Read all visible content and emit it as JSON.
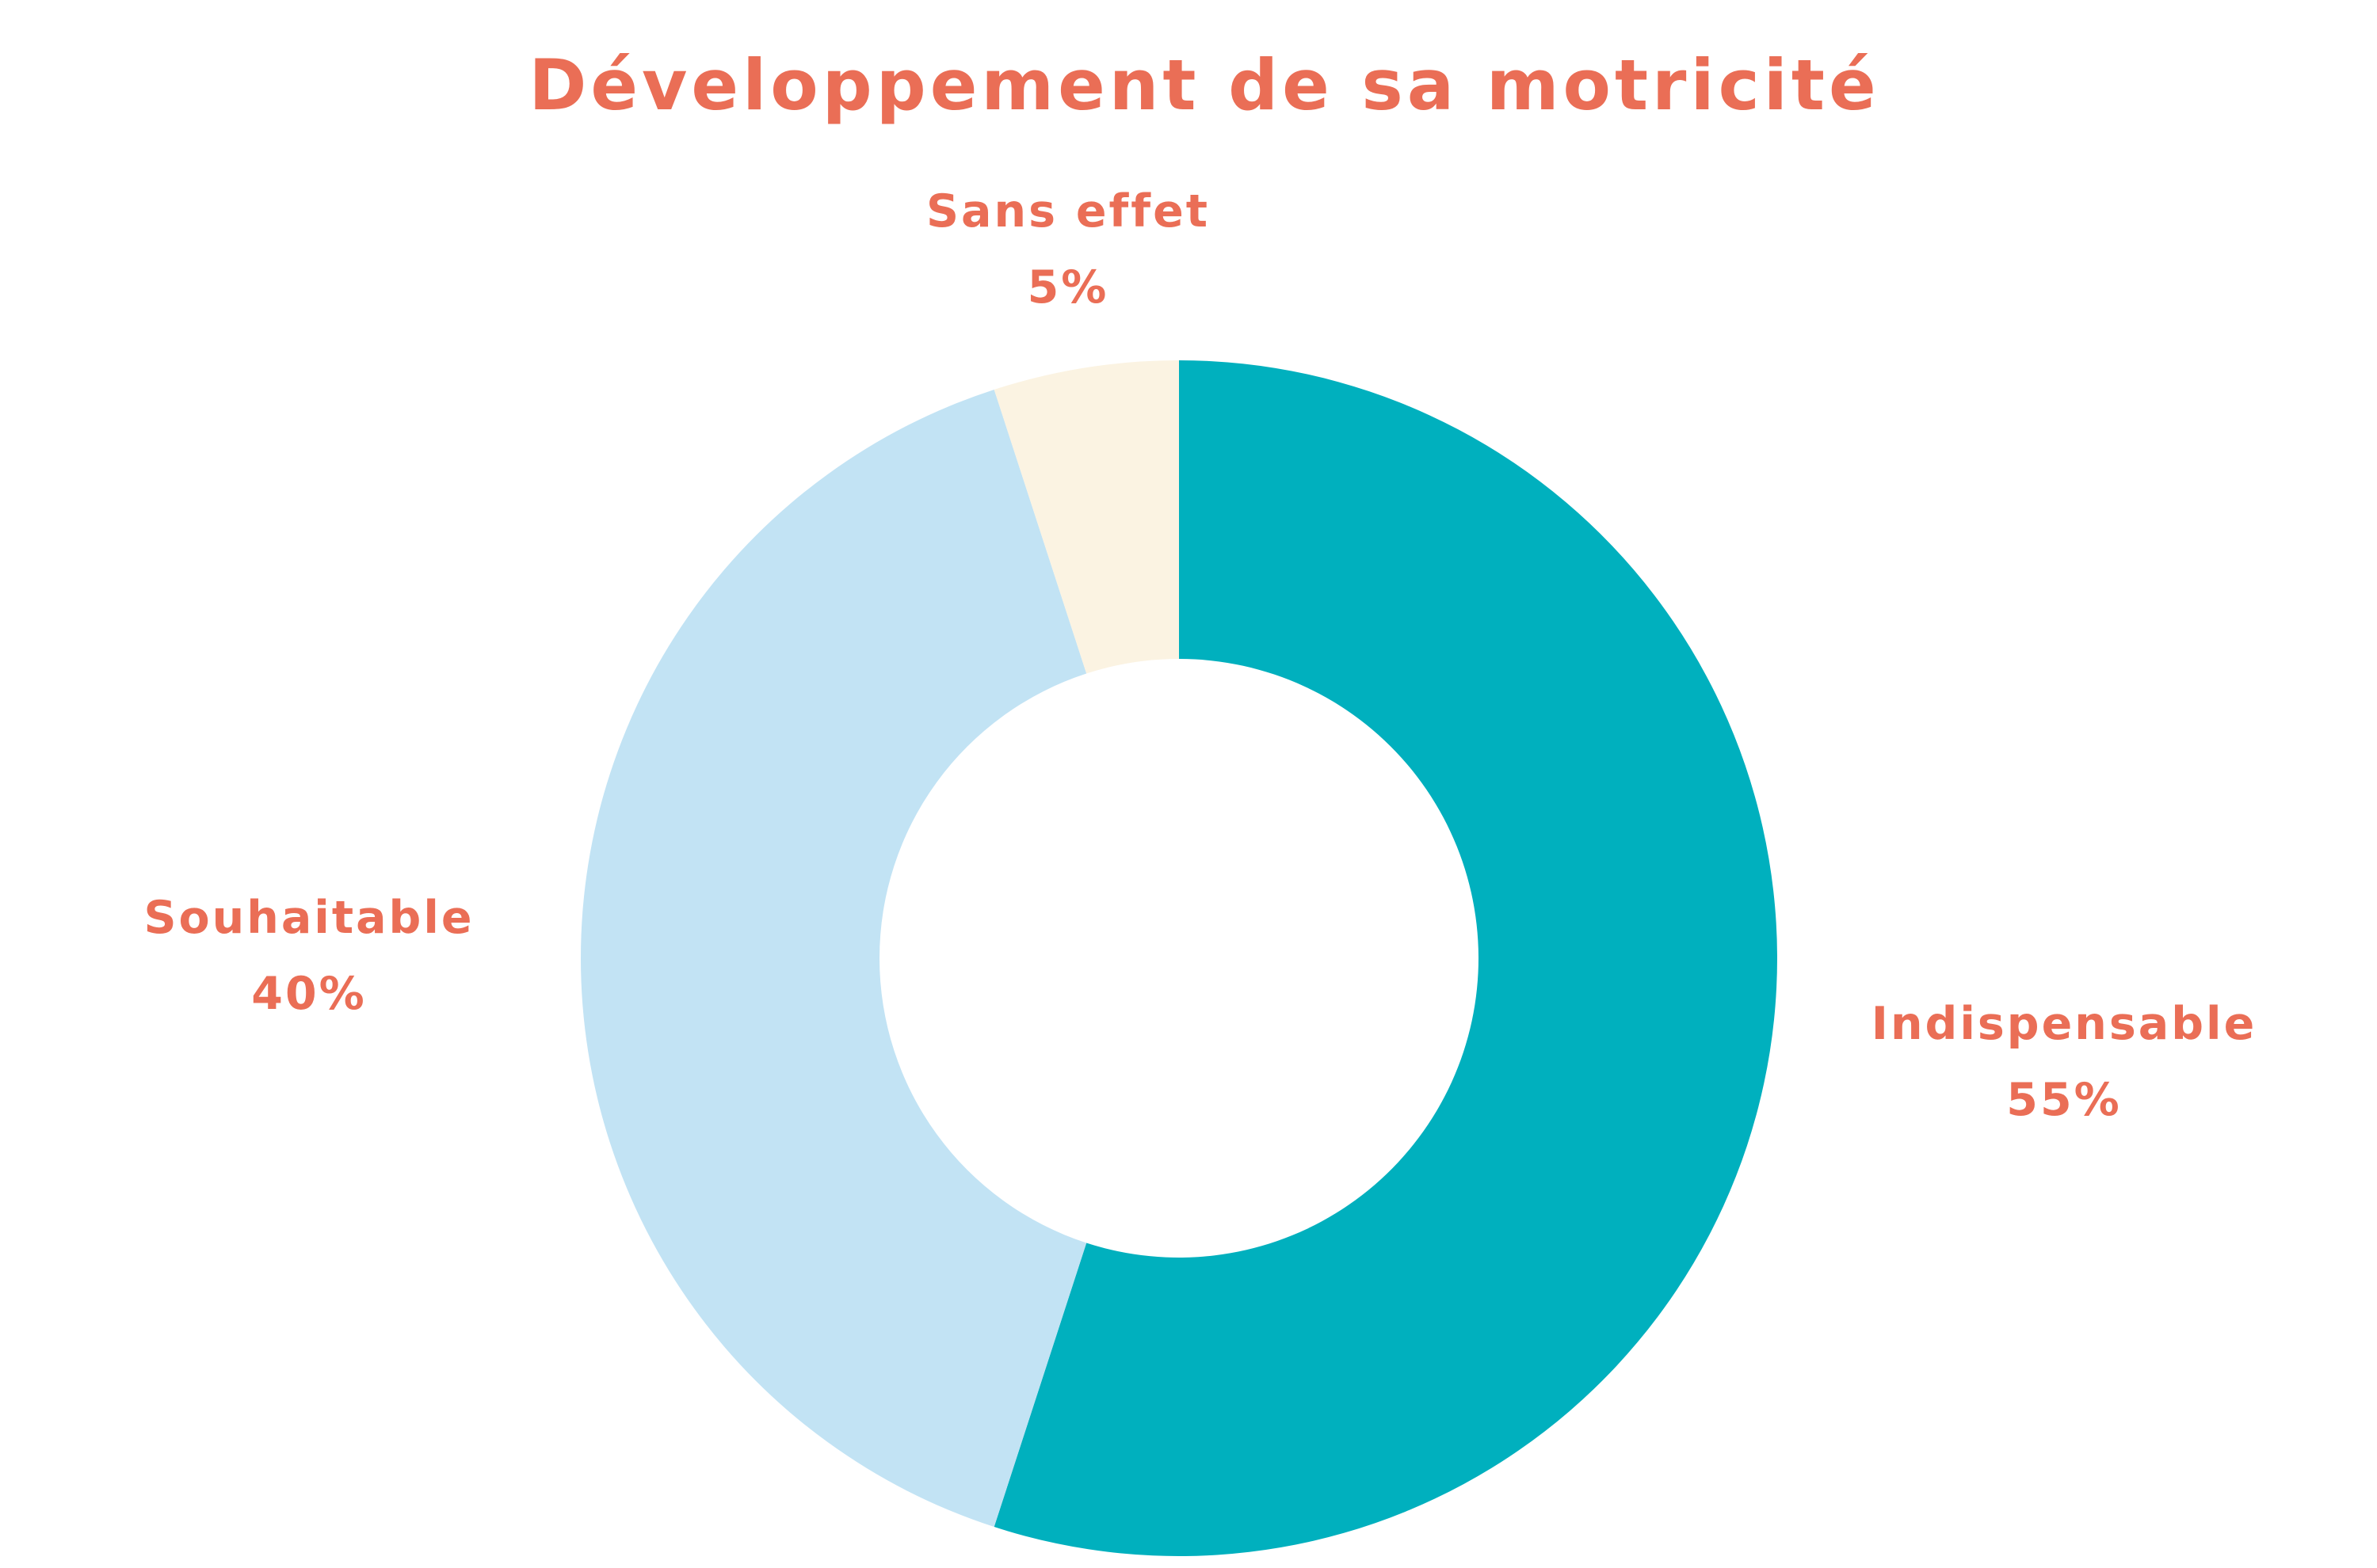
{
  "chart_data": {
    "type": "pie",
    "variant": "donut",
    "title": "Développement de sa motricité",
    "slices": [
      {
        "label": "Indispensable",
        "value": 55,
        "value_label": "55%",
        "color": "#00B0BE"
      },
      {
        "label": "Souhaitable",
        "value": 40,
        "value_label": "40%",
        "color": "#C2E3F4"
      },
      {
        "label": "Sans effet",
        "value": 5,
        "value_label": "5%",
        "color": "#FBF3E2"
      }
    ],
    "start": "top",
    "direction": "clockwise",
    "legend": "none"
  },
  "colors": {
    "text_accent": "#EA6E56",
    "background": "#FFFFFF"
  }
}
